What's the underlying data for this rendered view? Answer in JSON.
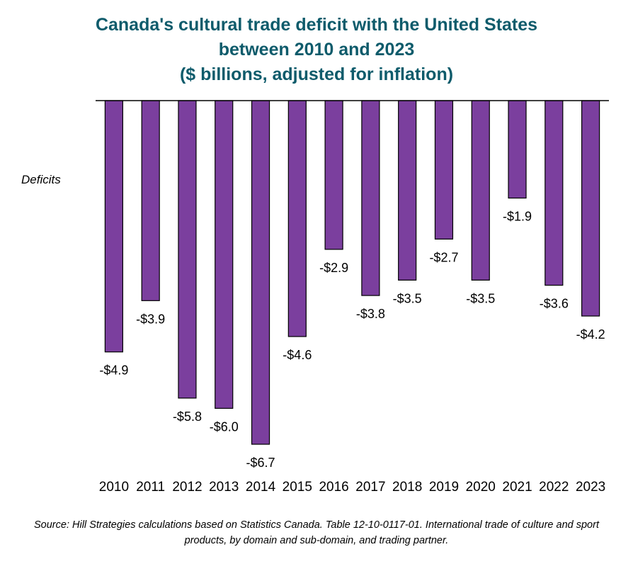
{
  "title_lines": [
    "Canada's cultural trade deficit with the United States",
    "between 2010 and 2023",
    "($ billions, adjusted for inflation)"
  ],
  "y_annotation": "Deficits",
  "source": "Source: Hill Strategies calculations based on Statistics Canada. Table 12-10-0117-01. International trade of culture and sport products, by domain and sub-domain, and trading partner.",
  "colors": {
    "bar": "#7b3f9e",
    "title": "#0e5b6b"
  },
  "chart_data": {
    "type": "bar",
    "title": "Canada's cultural trade deficit with the United States between 2010 and 2023 ($ billions, adjusted for inflation)",
    "xlabel": "",
    "ylabel": "",
    "categories": [
      "2010",
      "2011",
      "2012",
      "2013",
      "2014",
      "2015",
      "2016",
      "2017",
      "2018",
      "2019",
      "2020",
      "2021",
      "2022",
      "2023"
    ],
    "values": [
      -4.9,
      -3.9,
      -5.8,
      -6.0,
      -6.7,
      -4.6,
      -2.9,
      -3.8,
      -3.5,
      -2.7,
      -3.5,
      -1.9,
      -3.6,
      -4.2
    ],
    "data_labels": [
      "-$4.9",
      "-$3.9",
      "-$5.8",
      "-$6.0",
      "-$6.7",
      "-$4.6",
      "-$2.9",
      "-$3.8",
      "-$3.5",
      "-$2.7",
      "-$3.5",
      "-$1.9",
      "-$3.6",
      "-$4.2"
    ],
    "ylim": [
      -6.7,
      0
    ],
    "grid": false,
    "legend": "none"
  }
}
